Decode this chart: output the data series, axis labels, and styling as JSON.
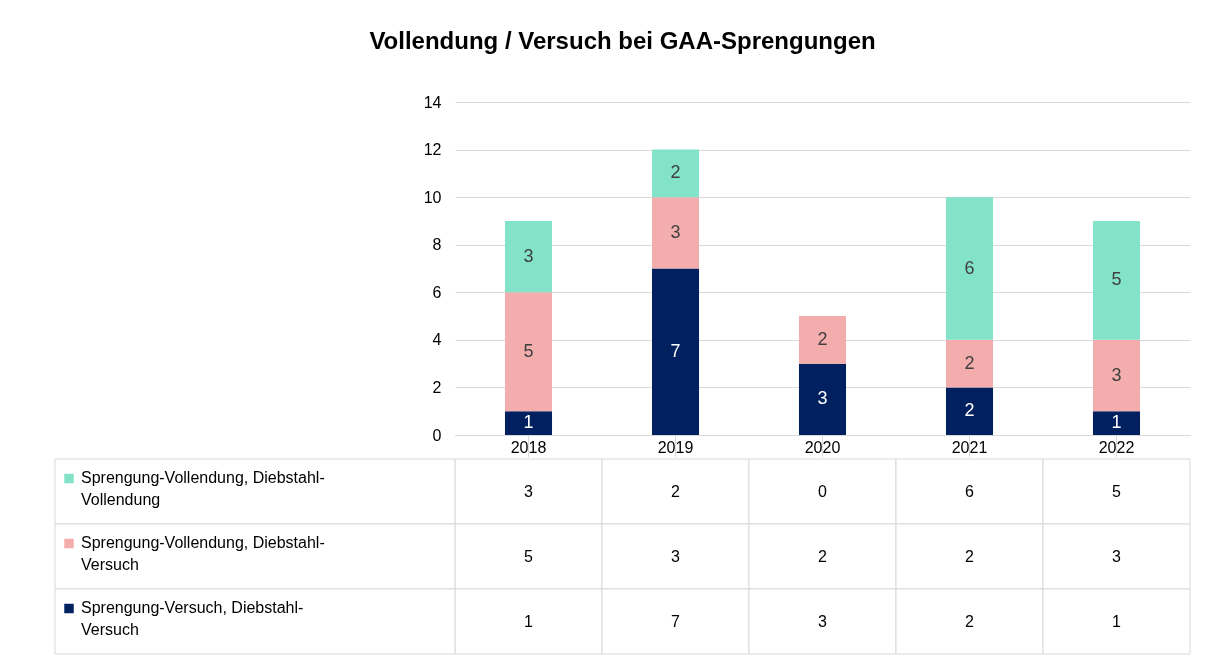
{
  "chart_data": {
    "type": "bar",
    "title": "Vollendung / Versuch bei GAA-Sprengungen",
    "stacked": true,
    "categories": [
      "2018",
      "2019",
      "2020",
      "2021",
      "2022"
    ],
    "series": [
      {
        "name": "Sprengung-Versuch, Diebstahl-Versuch",
        "color": "#002060",
        "values": [
          1,
          7,
          3,
          2,
          1
        ],
        "value_labels": [
          "1",
          "7",
          "3",
          "2",
          "1"
        ]
      },
      {
        "name": "Sprengung-Vollendung, Diebstahl-Versuch",
        "color": "#f4adad",
        "values": [
          5,
          3,
          2,
          2,
          3
        ],
        "value_labels": [
          "5",
          "3",
          "2",
          "2",
          "3"
        ]
      },
      {
        "name": "Sprengung-Vollendung, Diebstahl-Vollendung",
        "color": "#82e3c8",
        "values": [
          3,
          2,
          0,
          6,
          5
        ],
        "value_labels": [
          "3",
          "2",
          "0",
          "6",
          "5"
        ]
      }
    ],
    "ylim": [
      0,
      14
    ],
    "yticks": [
      0,
      2,
      4,
      6,
      8,
      10,
      12,
      14
    ],
    "grid": "y",
    "legend": "bottom left"
  }
}
